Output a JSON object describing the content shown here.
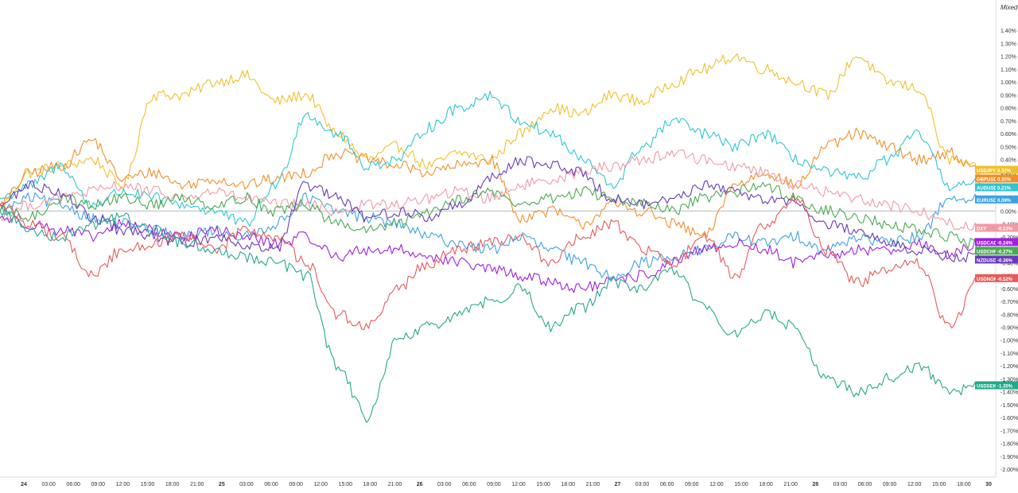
{
  "chart_data": {
    "type": "line",
    "scale_mode_label": "Mixed",
    "y_unit": "%",
    "ylim": [
      -2.0,
      1.5
    ],
    "y_ticks": [
      "1.40%",
      "1.30%",
      "1.20%",
      "1.10%",
      "1.00%",
      "0.90%",
      "0.80%",
      "0.70%",
      "0.60%",
      "0.50%",
      "0.40%",
      "0.30%",
      "0.20%",
      "0.10%",
      "0.00%",
      "-0.10%",
      "-0.20%",
      "-0.30%",
      "-0.40%",
      "-0.50%",
      "-0.60%",
      "-0.70%",
      "-0.80%",
      "-0.90%",
      "-1.00%",
      "-1.10%",
      "-1.20%",
      "-1.30%",
      "-1.40%",
      "-1.50%",
      "-1.60%",
      "-1.70%",
      "-1.80%",
      "-1.90%",
      "-2.00%"
    ],
    "x_ticks": [
      "24",
      "03:00",
      "06:00",
      "09:00",
      "12:00",
      "15:00",
      "18:00",
      "21:00",
      "25",
      "03:00",
      "06:00",
      "09:00",
      "12:00",
      "15:00",
      "18:00",
      "21:00",
      "26",
      "03:00",
      "06:00",
      "09:00",
      "12:00",
      "15:00",
      "18:00",
      "21:00",
      "27",
      "03:00",
      "06:00",
      "09:00",
      "12:00",
      "15:00",
      "18:00",
      "21:00",
      "28",
      "03:00",
      "06:00",
      "09:00",
      "12:00",
      "15:00",
      "18:00",
      "30"
    ],
    "x_bold_ticks": [
      "24",
      "25",
      "26",
      "27",
      "28",
      "30"
    ],
    "zero_line": true,
    "series": [
      {
        "name": "USDJPY",
        "value_label": "0.32%",
        "color": "#f0c02c",
        "values": [
          0.05,
          0.3,
          0.35,
          0.4,
          0.2,
          0.9,
          0.9,
          1.0,
          1.05,
          0.85,
          0.9,
          0.6,
          0.4,
          0.5,
          0.35,
          0.45,
          0.4,
          0.6,
          0.8,
          0.75,
          0.9,
          0.85,
          1.0,
          1.1,
          1.2,
          1.1,
          1.0,
          0.9,
          1.2,
          1.0,
          0.95,
          0.4,
          0.32
        ]
      },
      {
        "name": "GBPUSD",
        "value_label": "0.30%",
        "color": "#f0902a",
        "values": [
          0.05,
          0.3,
          0.35,
          0.55,
          0.25,
          0.3,
          0.2,
          0.25,
          0.2,
          0.25,
          0.3,
          0.45,
          0.4,
          0.35,
          0.3,
          0.35,
          0.4,
          -0.05,
          0.0,
          -0.1,
          0.05,
          0.0,
          -0.1,
          -0.2,
          0.2,
          0.3,
          0.2,
          0.5,
          0.6,
          0.5,
          0.4,
          0.45,
          0.3
        ]
      },
      {
        "name": "AUDUSD",
        "value_label": "0.21%",
        "color": "#2ec6d0",
        "values": [
          0.1,
          0.2,
          0.35,
          0.05,
          0.15,
          0.1,
          0.05,
          0.0,
          -0.1,
          0.2,
          0.75,
          0.6,
          0.35,
          0.4,
          0.65,
          0.8,
          0.9,
          0.7,
          0.6,
          0.4,
          0.2,
          0.5,
          0.7,
          0.6,
          0.5,
          0.6,
          0.4,
          0.3,
          0.25,
          0.4,
          0.6,
          0.2,
          0.21
        ]
      },
      {
        "name": "EURUSD",
        "value_label": "0.09%",
        "color": "#3da2e2",
        "values": [
          0.0,
          0.1,
          0.05,
          -0.05,
          -0.1,
          -0.15,
          -0.2,
          -0.15,
          -0.2,
          -0.1,
          0.1,
          0.0,
          -0.05,
          -0.1,
          -0.2,
          -0.25,
          -0.3,
          -0.2,
          -0.3,
          -0.4,
          -0.5,
          -0.4,
          -0.35,
          -0.3,
          -0.2,
          -0.25,
          -0.2,
          -0.3,
          -0.2,
          -0.25,
          -0.2,
          0.1,
          0.09
        ]
      },
      {
        "name": "DXY",
        "value_label": "-0.13%",
        "color": "#f09aa8",
        "values": [
          -0.05,
          0.05,
          0.1,
          0.15,
          0.2,
          0.15,
          0.1,
          0.15,
          0.1,
          0.05,
          0.05,
          0.0,
          0.05,
          0.05,
          0.1,
          0.15,
          0.1,
          0.2,
          0.25,
          0.3,
          0.35,
          0.4,
          0.45,
          0.4,
          0.35,
          0.3,
          0.2,
          0.15,
          0.1,
          0.05,
          0.0,
          -0.1,
          -0.13
        ]
      },
      {
        "name": "USDCAD",
        "value_label": "-0.24%",
        "color": "#a020e0",
        "values": [
          -0.05,
          -0.1,
          -0.15,
          -0.2,
          -0.1,
          -0.15,
          -0.2,
          -0.15,
          -0.2,
          -0.25,
          -0.2,
          -0.35,
          -0.3,
          -0.3,
          -0.35,
          -0.4,
          -0.45,
          -0.5,
          -0.55,
          -0.6,
          -0.55,
          -0.5,
          -0.4,
          -0.3,
          -0.25,
          -0.3,
          -0.4,
          -0.35,
          -0.3,
          -0.3,
          -0.25,
          -0.35,
          -0.24
        ]
      },
      {
        "name": "USDCHF",
        "value_label": "-0.27%",
        "color": "#4aaa52",
        "values": [
          0.0,
          -0.05,
          0.1,
          0.05,
          0.1,
          0.05,
          0.1,
          0.05,
          0.1,
          0.0,
          0.05,
          -0.1,
          -0.15,
          -0.1,
          0.0,
          0.1,
          0.15,
          0.05,
          0.1,
          0.15,
          0.1,
          0.05,
          0.0,
          0.1,
          0.15,
          0.2,
          0.1,
          0.0,
          -0.05,
          -0.1,
          -0.15,
          -0.2,
          -0.27
        ]
      },
      {
        "name": "NZDUSD",
        "value_label": "-0.36%",
        "color": "#6a3ab8",
        "values": [
          0.05,
          0.2,
          0.15,
          -0.05,
          -0.15,
          -0.2,
          -0.25,
          -0.2,
          -0.25,
          -0.3,
          0.2,
          0.1,
          -0.05,
          0.0,
          -0.05,
          0.05,
          0.25,
          0.4,
          0.35,
          0.3,
          0.1,
          0.05,
          0.1,
          0.2,
          0.15,
          0.1,
          0.05,
          -0.1,
          -0.15,
          -0.25,
          -0.3,
          -0.35,
          -0.36
        ]
      },
      {
        "name": "USDNOK",
        "value_label": "-0.52%",
        "color": "#e85a5a",
        "values": [
          0.05,
          -0.1,
          -0.2,
          -0.5,
          -0.3,
          -0.25,
          -0.2,
          -0.3,
          -0.15,
          -0.2,
          -0.4,
          -0.8,
          -0.9,
          -0.6,
          -0.4,
          -0.3,
          -0.25,
          -0.2,
          -0.4,
          -0.2,
          -0.1,
          -0.3,
          -0.4,
          -0.2,
          -0.5,
          -0.1,
          0.1,
          -0.3,
          -0.55,
          -0.45,
          -0.4,
          -0.9,
          -0.52
        ]
      },
      {
        "name": "USDSEK",
        "value_label": "-1.35%",
        "color": "#26a88c",
        "values": [
          0.0,
          -0.15,
          -0.2,
          -0.1,
          -0.05,
          -0.15,
          -0.25,
          -0.3,
          -0.35,
          -0.4,
          -0.5,
          -1.2,
          -1.6,
          -1.0,
          -0.9,
          -0.8,
          -0.7,
          -0.6,
          -0.9,
          -0.75,
          -0.55,
          -0.6,
          -0.45,
          -0.75,
          -0.95,
          -0.8,
          -0.9,
          -1.3,
          -1.4,
          -1.3,
          -1.2,
          -1.4,
          -1.35
        ]
      }
    ]
  }
}
